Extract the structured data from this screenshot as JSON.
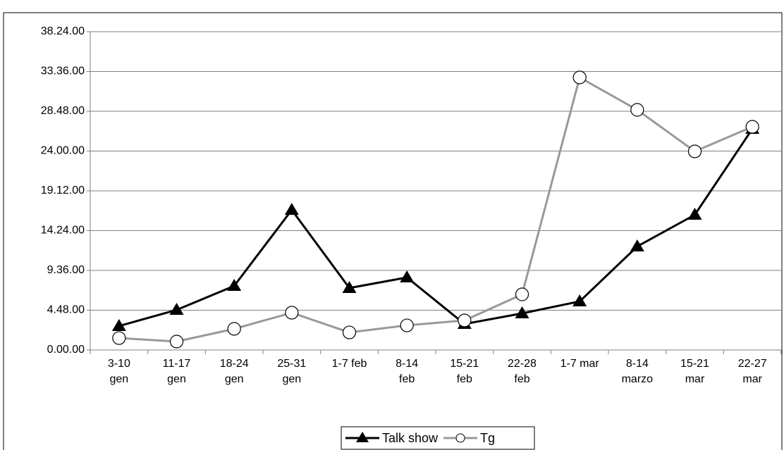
{
  "chart_data": {
    "type": "line",
    "categories": [
      [
        "3-10",
        "gen"
      ],
      [
        "11-17",
        "gen"
      ],
      [
        "18-24",
        "gen"
      ],
      [
        "25-31",
        "gen"
      ],
      [
        "1-7 feb"
      ],
      [
        "8-14",
        "feb"
      ],
      [
        "15-21",
        "feb"
      ],
      [
        "22-28",
        "feb"
      ],
      [
        "1-7 mar"
      ],
      [
        "8-14",
        "marzo"
      ],
      [
        "15-21",
        "mar"
      ],
      [
        "22-27",
        "mar"
      ]
    ],
    "series": [
      {
        "name": "Talk show",
        "color": "#000000",
        "marker": "triangle",
        "values": [
          2.89,
          4.84,
          7.73,
          16.9,
          7.48,
          8.75,
          3.14,
          4.42,
          5.86,
          12.49,
          16.31,
          26.68
        ]
      },
      {
        "name": "Tg",
        "color": "#999999",
        "marker": "circle",
        "values": [
          1.44,
          1.02,
          2.55,
          4.5,
          2.12,
          2.97,
          3.57,
          6.71,
          32.88,
          28.97,
          23.96,
          26.93
        ]
      }
    ],
    "ylim": [
      0,
      38.4
    ],
    "yticks": [
      {
        "value": 0,
        "label": "0.00.00"
      },
      {
        "value": 4.8,
        "label": "4.48.00"
      },
      {
        "value": 9.6,
        "label": "9.36.00"
      },
      {
        "value": 14.4,
        "label": "14.24.00"
      },
      {
        "value": 19.2,
        "label": "19.12.00"
      },
      {
        "value": 24,
        "label": "24.00.00"
      },
      {
        "value": 28.8,
        "label": "28.48.00"
      },
      {
        "value": 33.6,
        "label": "33.36.00"
      },
      {
        "value": 38.4,
        "label": "38.24.00"
      }
    ],
    "grid": true,
    "legend": "bottom"
  }
}
